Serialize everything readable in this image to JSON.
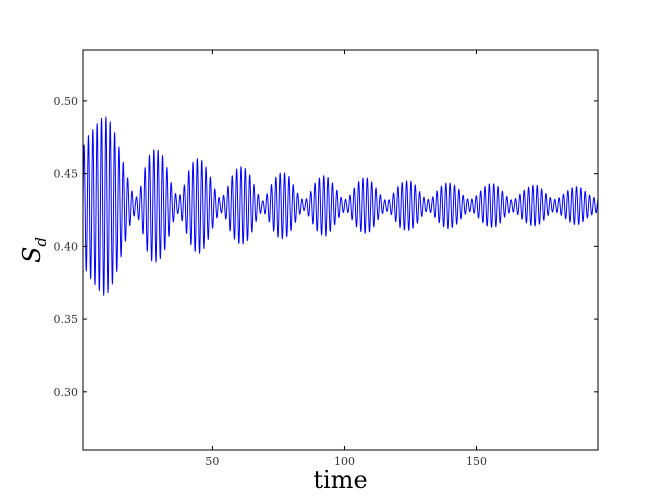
{
  "chart_data": {
    "type": "line",
    "title": "",
    "xlabel": "time",
    "ylabel": {
      "main": "S",
      "sub": "d"
    },
    "xlim": [
      1,
      196
    ],
    "ylim": [
      0.26,
      0.535
    ],
    "x_ticks": [
      50,
      100,
      150
    ],
    "x_tick_labels": [
      "50",
      "100",
      "150"
    ],
    "y_ticks": [
      0.3,
      0.35,
      0.4,
      0.45,
      0.5
    ],
    "y_tick_labels": [
      "0.30",
      "0.35",
      "0.40",
      "0.45",
      "0.50"
    ],
    "grid": false,
    "legend": "none",
    "series": [
      {
        "color": "#0000ff",
        "signal": {
          "baseline": 0.428,
          "carrier_period": 1.65,
          "x_start": 1,
          "x_end": 196,
          "start_value": 0.355,
          "amplitude": {
            "x": [
              1,
              3,
              5,
              7,
              9,
              11,
              13,
              15,
              17,
              19,
              21,
              23,
              25,
              27,
              29,
              31,
              33,
              35,
              37,
              39,
              41,
              43,
              45,
              47,
              49,
              51,
              53,
              55,
              57,
              59,
              61,
              63,
              65,
              67,
              69,
              71,
              73,
              75,
              77,
              79,
              81,
              83,
              85,
              87,
              89,
              91,
              93,
              95,
              97,
              99,
              101,
              103,
              105,
              107,
              109,
              111,
              113,
              115,
              117,
              119,
              121,
              123,
              125,
              127,
              129,
              131,
              133,
              135,
              137,
              139,
              141,
              143,
              145,
              147,
              149,
              151,
              153,
              155,
              157,
              159,
              161,
              163,
              165,
              167,
              169,
              171,
              173,
              175,
              177,
              179,
              181,
              183,
              185,
              187,
              189,
              191,
              193,
              195
            ],
            "y": [
              0.04,
              0.048,
              0.053,
              0.058,
              0.062,
              0.059,
              0.05,
              0.038,
              0.025,
              0.012,
              0.005,
              0.014,
              0.03,
              0.038,
              0.039,
              0.035,
              0.025,
              0.012,
              0.005,
              0.012,
              0.024,
              0.031,
              0.033,
              0.029,
              0.021,
              0.011,
              0.004,
              0.009,
              0.019,
              0.025,
              0.027,
              0.025,
              0.018,
              0.009,
              0.003,
              0.009,
              0.017,
              0.022,
              0.023,
              0.02,
              0.013,
              0.006,
              0.003,
              0.009,
              0.016,
              0.02,
              0.021,
              0.017,
              0.011,
              0.005,
              0.004,
              0.01,
              0.016,
              0.019,
              0.019,
              0.015,
              0.009,
              0.004,
              0.004,
              0.01,
              0.015,
              0.017,
              0.017,
              0.014,
              0.008,
              0.004,
              0.005,
              0.01,
              0.014,
              0.016,
              0.015,
              0.012,
              0.007,
              0.004,
              0.005,
              0.009,
              0.013,
              0.015,
              0.015,
              0.012,
              0.007,
              0.004,
              0.005,
              0.009,
              0.012,
              0.014,
              0.014,
              0.011,
              0.007,
              0.004,
              0.005,
              0.008,
              0.011,
              0.013,
              0.013,
              0.01,
              0.007,
              0.005
            ]
          }
        }
      }
    ]
  }
}
